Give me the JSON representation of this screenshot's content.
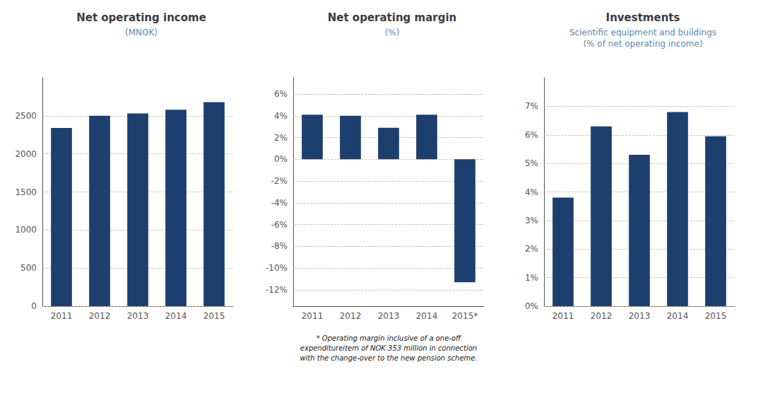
{
  "chart_data": [
    {
      "type": "bar",
      "title": "Net operating income",
      "subtitle": "(MNOK)",
      "categories": [
        "2011",
        "2012",
        "2013",
        "2014",
        "2015"
      ],
      "values": [
        2340,
        2500,
        2530,
        2580,
        2680
      ],
      "color": "#1c3f6e",
      "ylim": [
        0,
        3000
      ],
      "yticks": [
        0,
        500,
        1000,
        1500,
        2000,
        2500
      ],
      "grid": true
    },
    {
      "type": "bar",
      "title": "Net operating margin",
      "subtitle": "(%)",
      "categories": [
        "2011",
        "2012",
        "2013",
        "2014",
        "2015*"
      ],
      "values": [
        4.1,
        4.0,
        2.9,
        4.1,
        -11.3
      ],
      "color": "#1c3f6e",
      "ylim": [
        -13.5,
        7.5
      ],
      "yticks": [
        {
          "value": -12,
          "label": "-12%"
        },
        {
          "value": -10,
          "label": "-10%"
        },
        {
          "value": -8,
          "label": "-8%"
        },
        {
          "value": -6,
          "label": "-6%"
        },
        {
          "value": -4,
          "label": "-4%"
        },
        {
          "value": -2,
          "label": "-2%"
        },
        {
          "value": 0,
          "label": "0%"
        },
        {
          "value": 2,
          "label": "2%"
        },
        {
          "value": 4,
          "label": "4%"
        },
        {
          "value": 6,
          "label": "6%"
        }
      ],
      "grid": true,
      "annotation": "* Operating margin inclusive of a one-off\nexpenditureitem of NOK 353 million in connection\nwith the change-over to the new pension scheme."
    },
    {
      "type": "bar",
      "title": "Investments",
      "subtitle": "Scientific equipment and buildings\n(% of net operating income)",
      "categories": [
        "2011",
        "2012",
        "2013",
        "2014",
        "2015"
      ],
      "values": [
        3.8,
        6.3,
        5.3,
        6.8,
        5.95
      ],
      "color": "#1c3f6e",
      "ylim": [
        0,
        8
      ],
      "yticks": [
        {
          "value": 0,
          "label": "0%"
        },
        {
          "value": 1,
          "label": "1%"
        },
        {
          "value": 2,
          "label": "2%"
        },
        {
          "value": 3,
          "label": "3%"
        },
        {
          "value": 4,
          "label": "4%"
        },
        {
          "value": 5,
          "label": "5%"
        },
        {
          "value": 6,
          "label": "6%"
        },
        {
          "value": 7,
          "label": "7%"
        }
      ],
      "grid": true
    }
  ]
}
